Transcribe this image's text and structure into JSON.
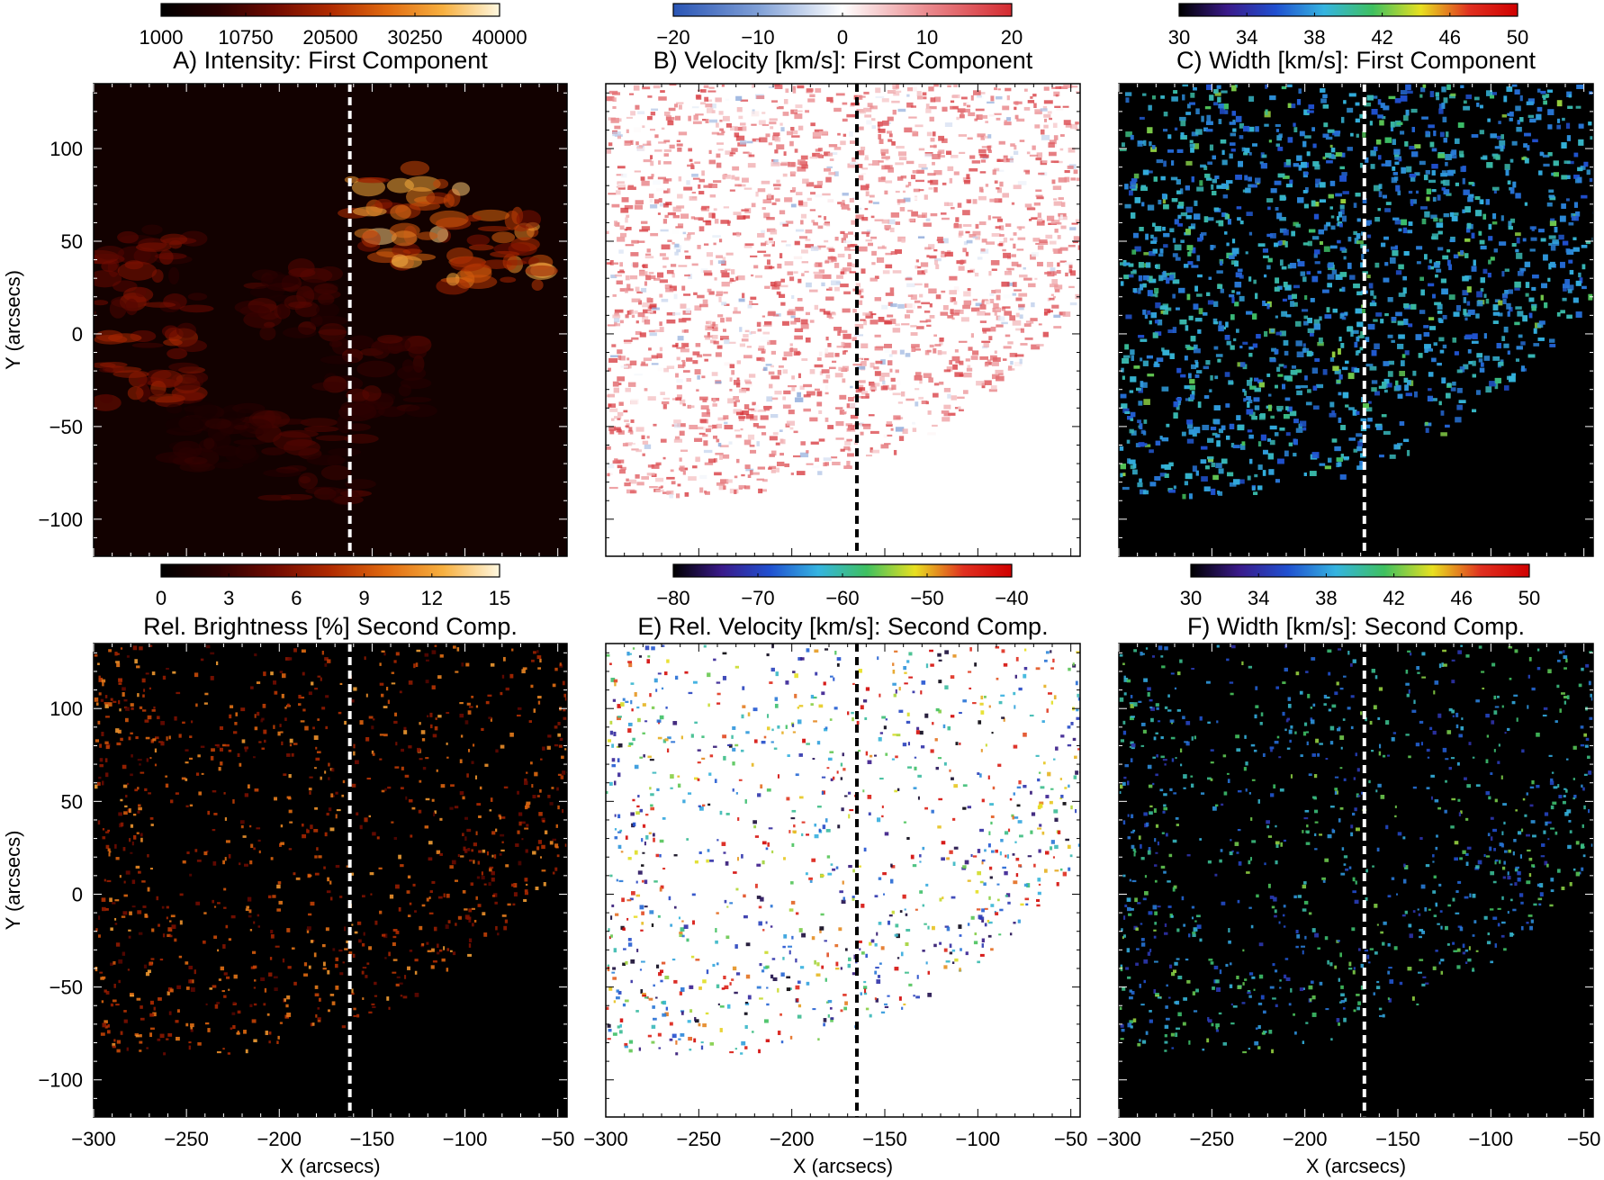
{
  "figure": {
    "colors": {
      "dashed_line_dark_bg": "#ffffff",
      "dashed_line_light_bg": "#000000",
      "dark_background": "#000000",
      "light_background": "#ffffff"
    }
  },
  "chart_data": [
    {
      "id": "A",
      "type": "heatmap",
      "title": "A) Intensity: First Component",
      "xlabel": "",
      "ylabel": "Y (arcsecs)",
      "xlim": [
        -300,
        -45
      ],
      "ylim": [
        -120,
        135
      ],
      "x_ticks": [],
      "y_ticks": [
        "100",
        "50",
        "0",
        "−50",
        "−100"
      ],
      "y_tick_values": [
        100,
        50,
        0,
        -50,
        -100
      ],
      "colorbar": {
        "colormap": "hot",
        "stops": [
          "#000000",
          "#2a0000",
          "#700a00",
          "#b02a00",
          "#e06a10",
          "#f7b040",
          "#fff8e0"
        ],
        "tick_labels": [
          "1000",
          "10750",
          "20500",
          "30250",
          "40000"
        ],
        "range": [
          1000,
          40000
        ]
      },
      "dashed_x": -162,
      "background": "dark",
      "overlay_color": "#ffffff"
    },
    {
      "id": "B",
      "type": "heatmap",
      "title": "B) Velocity [km/s]: First Component",
      "xlabel": "",
      "ylabel": "",
      "xlim": [
        -300,
        -45
      ],
      "ylim": [
        -120,
        135
      ],
      "x_ticks": [],
      "y_ticks": [],
      "colorbar": {
        "colormap": "blue-white-red",
        "stops": [
          "#2a55b5",
          "#7f9fd6",
          "#ffffff",
          "#ea8a8e",
          "#d42a30"
        ],
        "tick_labels": [
          "−20",
          "−10",
          "0",
          "10",
          "20"
        ],
        "range": [
          -20,
          20
        ]
      },
      "dashed_x": -165,
      "background": "light",
      "overlay_color": "#000000"
    },
    {
      "id": "C",
      "type": "heatmap",
      "title": "C) Width [km/s]: First Component",
      "xlabel": "",
      "ylabel": "",
      "xlim": [
        -300,
        -45
      ],
      "ylim": [
        -120,
        135
      ],
      "x_ticks": [],
      "y_ticks": [],
      "colorbar": {
        "colormap": "rainbow",
        "stops": [
          "#000000",
          "#3a1a8a",
          "#2050d0",
          "#35b4e0",
          "#3ec060",
          "#e8e020",
          "#e03020",
          "#d00000"
        ],
        "tick_labels": [
          "30",
          "34",
          "38",
          "42",
          "46",
          "50"
        ],
        "range": [
          30,
          50
        ]
      },
      "dashed_x": -168,
      "background": "dark",
      "overlay_color": "#ffffff"
    },
    {
      "id": "D",
      "type": "heatmap",
      "title": "Rel. Brightness [%] Second Comp.",
      "xlabel": "X (arcsecs)",
      "ylabel": "Y (arcsecs)",
      "xlim": [
        -300,
        -45
      ],
      "ylim": [
        -120,
        135
      ],
      "x_ticks": [
        "−300",
        "−250",
        "−200",
        "−150",
        "−100",
        "−50"
      ],
      "x_tick_values": [
        -300,
        -250,
        -200,
        -150,
        -100,
        -50
      ],
      "y_ticks": [
        "100",
        "50",
        "0",
        "−50",
        "−100"
      ],
      "y_tick_values": [
        100,
        50,
        0,
        -50,
        -100
      ],
      "colorbar": {
        "colormap": "hot",
        "stops": [
          "#000000",
          "#2a0000",
          "#700a00",
          "#b02a00",
          "#e06a10",
          "#f7b040",
          "#fff8e0"
        ],
        "tick_labels": [
          "0",
          "3",
          "6",
          "9",
          "12",
          "15"
        ],
        "range": [
          0,
          15
        ]
      },
      "dashed_x": -162,
      "background": "dark",
      "overlay_color": "#ffffff"
    },
    {
      "id": "E",
      "type": "heatmap",
      "title": "E) Rel. Velocity [km/s]: Second Comp.",
      "xlabel": "X (arcsecs)",
      "ylabel": "",
      "xlim": [
        -300,
        -45
      ],
      "ylim": [
        -120,
        135
      ],
      "x_ticks": [
        "−300",
        "−250",
        "−200",
        "−150",
        "−100",
        "−50"
      ],
      "x_tick_values": [
        -300,
        -250,
        -200,
        -150,
        -100,
        -50
      ],
      "y_ticks": [],
      "colorbar": {
        "colormap": "rainbow",
        "stops": [
          "#000000",
          "#3a1a8a",
          "#2050d0",
          "#35b4e0",
          "#3ec060",
          "#e8e020",
          "#e03020",
          "#d00000"
        ],
        "tick_labels": [
          "−80",
          "−70",
          "−60",
          "−50",
          "−40"
        ],
        "range": [
          -80,
          -40
        ]
      },
      "dashed_x": -165,
      "background": "light",
      "overlay_color": "#000000"
    },
    {
      "id": "F",
      "type": "heatmap",
      "title": "F) Width [km/s]: Second Comp.",
      "xlabel": "X (arcsecs)",
      "ylabel": "",
      "xlim": [
        -300,
        -45
      ],
      "ylim": [
        -120,
        135
      ],
      "x_ticks": [
        "−300",
        "−250",
        "−200",
        "−150",
        "−100",
        "−50"
      ],
      "x_tick_values": [
        -300,
        -250,
        -200,
        -150,
        -100,
        -50
      ],
      "y_ticks": [],
      "colorbar": {
        "colormap": "rainbow",
        "stops": [
          "#000000",
          "#3a1a8a",
          "#2050d0",
          "#35b4e0",
          "#3ec060",
          "#e8e020",
          "#e03020",
          "#d00000"
        ],
        "tick_labels": [
          "30",
          "34",
          "38",
          "42",
          "46",
          "50"
        ],
        "range": [
          30,
          50
        ]
      },
      "dashed_x": -168,
      "background": "dark",
      "overlay_color": "#ffffff"
    }
  ]
}
